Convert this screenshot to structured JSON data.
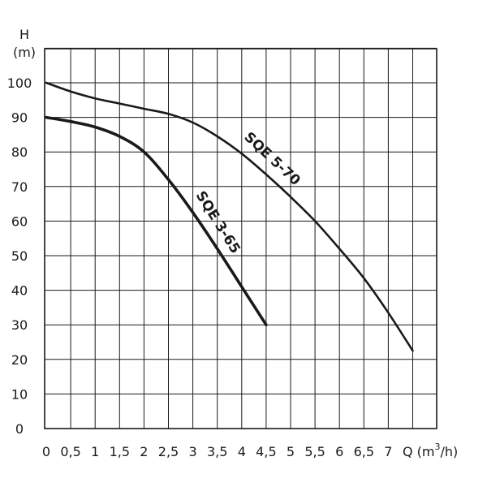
{
  "chart_data": {
    "type": "line",
    "y_axis": {
      "label_line1": "H",
      "label_line2": "(m)",
      "ticks": [
        0,
        10,
        20,
        30,
        40,
        50,
        60,
        70,
        80,
        90,
        100
      ],
      "range": [
        0,
        110
      ]
    },
    "x_axis": {
      "label_prefix": "Q (m",
      "label_sup": "3",
      "label_suffix": "/h)",
      "ticks": [
        "0",
        "0,5",
        "1",
        "1,5",
        "2",
        "2,5",
        "3",
        "3,5",
        "4",
        "4,5",
        "5",
        "5,5",
        "6",
        "6,5",
        "7"
      ],
      "range": [
        0,
        8
      ]
    },
    "grid": true,
    "series": [
      {
        "name": "SQE 5-70",
        "x": [
          0,
          0.5,
          1,
          1.5,
          2,
          2.5,
          3,
          3.5,
          4,
          4.5,
          5,
          5.5,
          6,
          6.5,
          7,
          7.5
        ],
        "y": [
          100,
          97.5,
          95.5,
          94,
          92.5,
          91,
          88.5,
          84.5,
          79.5,
          73.5,
          67,
          60,
          52,
          43.5,
          33.5,
          22.5
        ]
      },
      {
        "name": "SQE 3-65",
        "x": [
          0,
          0.5,
          1,
          1.5,
          2,
          2.5,
          3,
          3.5,
          4,
          4.5
        ],
        "y": [
          90,
          88.8,
          87.2,
          84.5,
          80,
          72,
          62.5,
          52,
          41,
          30
        ]
      }
    ]
  }
}
